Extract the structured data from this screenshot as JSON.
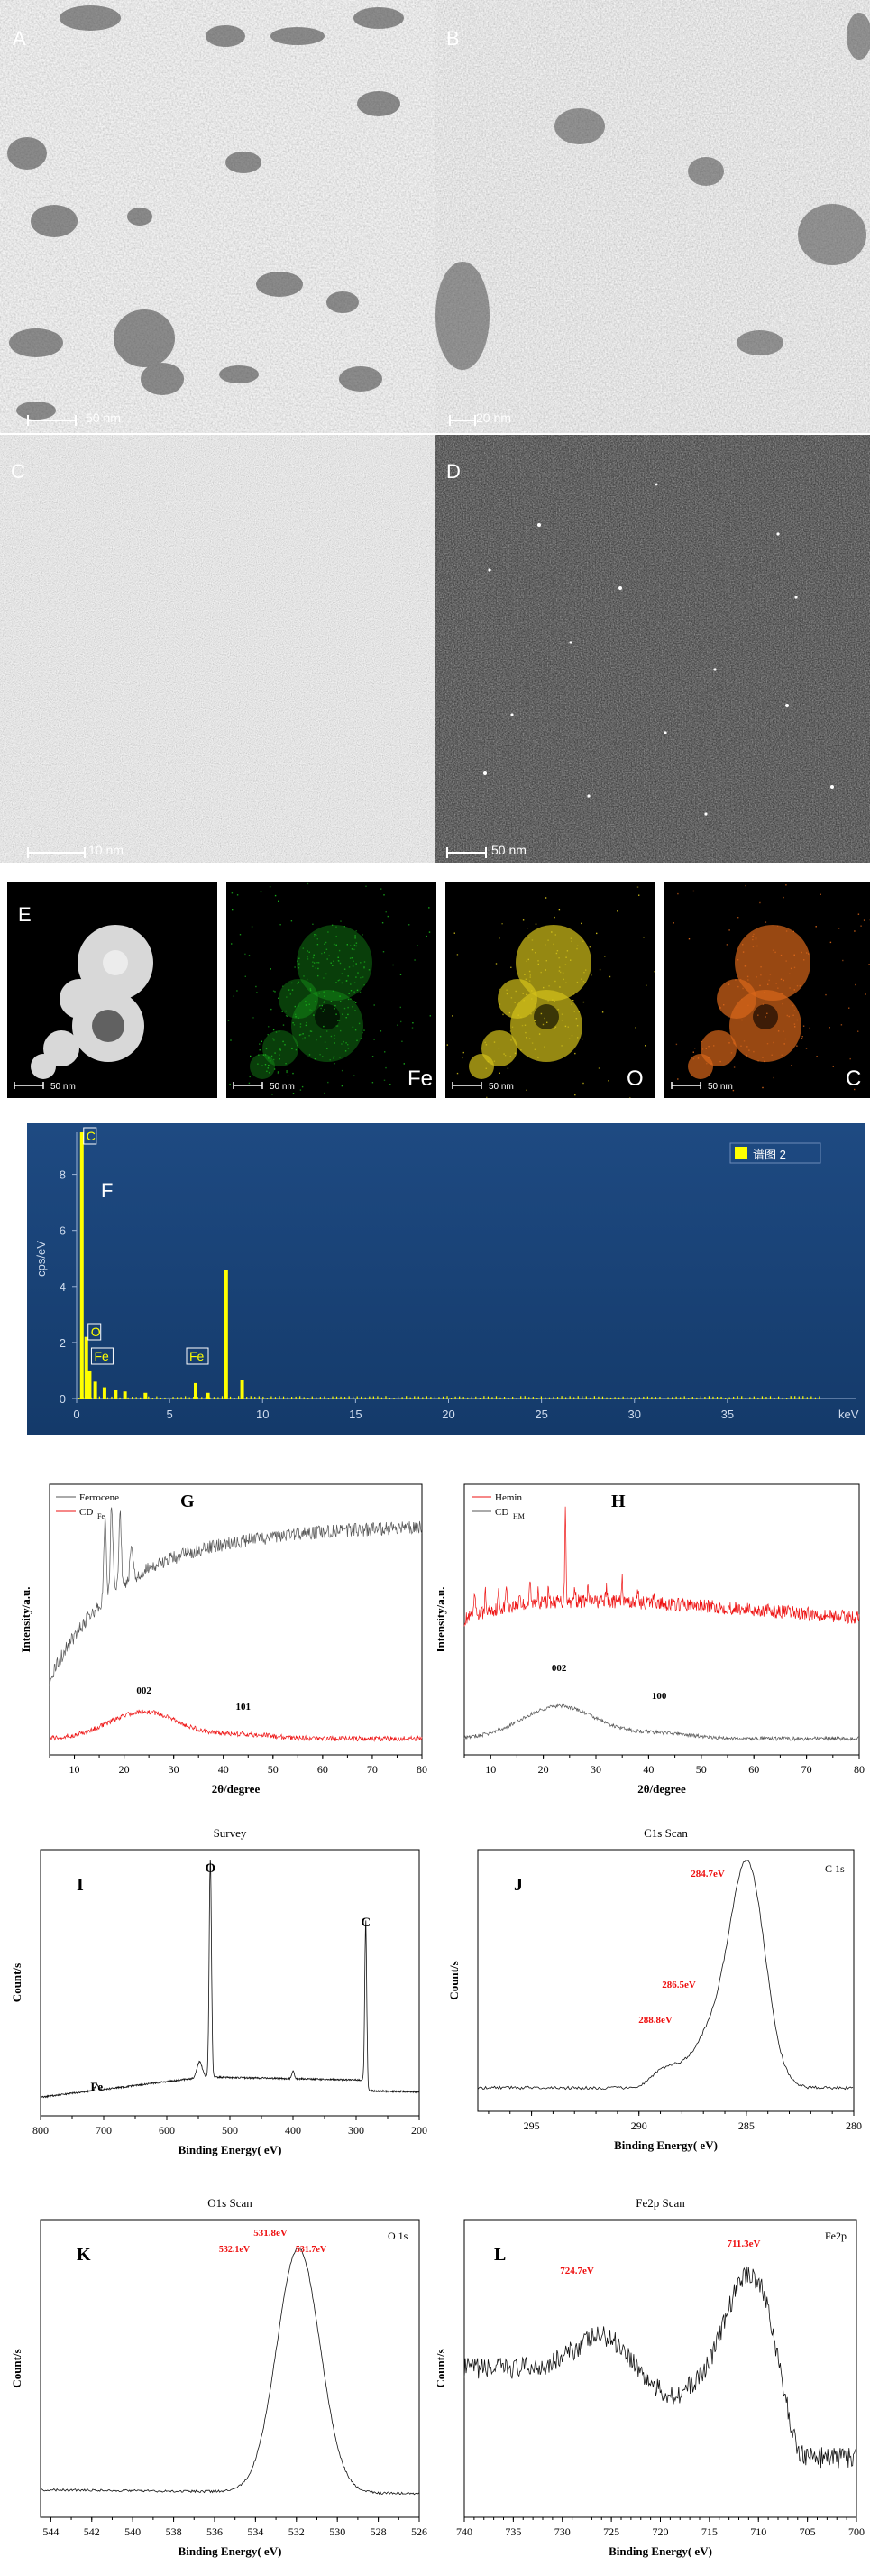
{
  "panels": {
    "A": {
      "label": "A",
      "scale": "50 nm"
    },
    "B": {
      "label": "B",
      "scale": "20 nm"
    },
    "C": {
      "label": "C",
      "scale": "10 nm"
    },
    "D": {
      "label": "D",
      "scale": "50 nm"
    },
    "E": {
      "label": "E",
      "maps": [
        {
          "element": "",
          "scale": "50 nm",
          "color": "#e6e6e6"
        },
        {
          "element": "Fe",
          "scale": "50 nm",
          "color": "#19b31c"
        },
        {
          "element": "O",
          "scale": "50 nm",
          "color": "#d4c21a"
        },
        {
          "element": "C",
          "scale": "50 nm",
          "color": "#d9661a"
        }
      ]
    }
  },
  "chart_data": [
    {
      "panel": "F",
      "type": "bar",
      "legend": "谱图 2",
      "ylabel": "cps/eV",
      "xlabel": "keV",
      "xlim": [
        0,
        40
      ],
      "ylim": [
        0,
        9.5
      ],
      "xticks": [
        0,
        5,
        10,
        15,
        20,
        25,
        30,
        35
      ],
      "yticks": [
        0,
        2,
        4,
        6,
        8
      ],
      "peak_labels": [
        {
          "text": "C",
          "x": 0.28
        },
        {
          "text": "O",
          "x": 0.52
        },
        {
          "text": "Fe",
          "x": 0.7
        },
        {
          "text": "Fe",
          "x": 6.4
        }
      ],
      "peaks": [
        {
          "x": 0.28,
          "y": 9.5
        },
        {
          "x": 0.52,
          "y": 2.2
        },
        {
          "x": 0.7,
          "y": 1.0
        },
        {
          "x": 1.0,
          "y": 0.6
        },
        {
          "x": 1.5,
          "y": 0.4
        },
        {
          "x": 2.1,
          "y": 0.3
        },
        {
          "x": 2.6,
          "y": 0.25
        },
        {
          "x": 3.7,
          "y": 0.2
        },
        {
          "x": 6.4,
          "y": 0.55
        },
        {
          "x": 7.06,
          "y": 0.2
        },
        {
          "x": 8.04,
          "y": 4.6
        },
        {
          "x": 8.9,
          "y": 0.65
        }
      ]
    },
    {
      "panel": "G",
      "type": "line",
      "xlabel": "2θ/degree",
      "ylabel": "Intensity/a.u.",
      "xlim": [
        5,
        80
      ],
      "xticks": [
        10,
        20,
        30,
        40,
        50,
        60,
        70,
        80
      ],
      "series": [
        {
          "name": "Ferrocene",
          "color": "#555555"
        },
        {
          "name": "CD",
          "sub": "Fe",
          "color": "#ee1111"
        }
      ],
      "annotations": [
        {
          "text": "002",
          "x": 24
        },
        {
          "text": "101",
          "x": 44
        }
      ]
    },
    {
      "panel": "H",
      "type": "line",
      "xlabel": "2θ/degree",
      "ylabel": "Intensity/a.u.",
      "xlim": [
        5,
        80
      ],
      "xticks": [
        10,
        20,
        30,
        40,
        50,
        60,
        70,
        80
      ],
      "series": [
        {
          "name": "Hemin",
          "color": "#ee1111"
        },
        {
          "name": "CD",
          "sub": "HM",
          "color": "#555555"
        }
      ],
      "annotations": [
        {
          "text": "002",
          "x": 23
        },
        {
          "text": "100",
          "x": 42
        }
      ]
    },
    {
      "panel": "I",
      "type": "line",
      "title": "Survey",
      "xlabel": "Binding Energy( eV)",
      "ylabel": "Count/s",
      "xlim": [
        800,
        200
      ],
      "xticks": [
        800,
        700,
        600,
        500,
        400,
        300,
        200
      ],
      "annotations": [
        {
          "text": "O",
          "x": 531
        },
        {
          "text": "C",
          "x": 284.7
        },
        {
          "text": "Fe",
          "x": 711
        }
      ]
    },
    {
      "panel": "J",
      "type": "line",
      "title": "C1s  Scan",
      "legend": "C 1s",
      "xlabel": "Binding Energy( eV)",
      "ylabel": "Count/s",
      "xlim": [
        297.5,
        280
      ],
      "xticks": [
        295,
        290,
        285,
        280
      ],
      "annotations": [
        {
          "text": "284.7eV",
          "x": 284.7
        },
        {
          "text": "286.5eV",
          "x": 286.5
        },
        {
          "text": "288.8eV",
          "x": 288.8
        }
      ]
    },
    {
      "panel": "K",
      "type": "line",
      "title": "O1s Scan",
      "legend": "O 1s",
      "xlabel": "Binding Energy( eV)",
      "ylabel": "Count/s",
      "xlim": [
        544.5,
        526
      ],
      "xticks": [
        544,
        542,
        540,
        538,
        536,
        534,
        532,
        530,
        528,
        526
      ],
      "annotations": [
        {
          "text": "531.8eV",
          "x": 531.8
        },
        {
          "text": "532.1eV",
          "x": 532.1
        },
        {
          "text": "531.7eV",
          "x": 531.7
        }
      ]
    },
    {
      "panel": "L",
      "type": "line",
      "title": "Fe2p Scan",
      "legend": "Fe2p",
      "xlabel": "Binding Energy( eV)",
      "ylabel": "Count/s",
      "xlim": [
        740,
        700
      ],
      "xticks": [
        740,
        735,
        730,
        725,
        720,
        715,
        710,
        705,
        700
      ],
      "annotations": [
        {
          "text": "724.7eV",
          "x": 724.7
        },
        {
          "text": "711.3eV",
          "x": 711.3
        }
      ]
    }
  ]
}
